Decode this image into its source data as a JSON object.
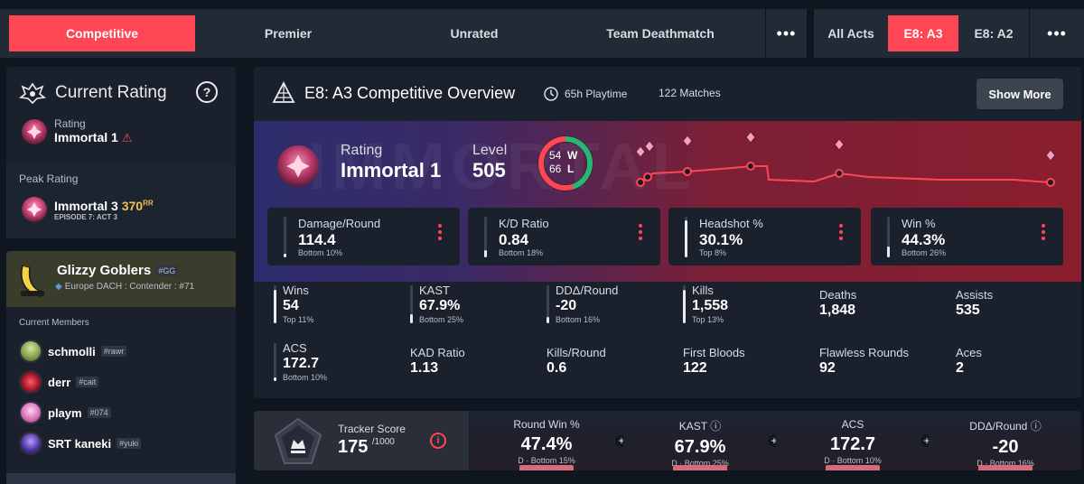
{
  "mode_tabs": [
    {
      "label": "Competitive",
      "active": true
    },
    {
      "label": "Premier"
    },
    {
      "label": "Unrated"
    },
    {
      "label": "Team Deathmatch"
    }
  ],
  "act_tabs": [
    {
      "label": "All Acts"
    },
    {
      "label": "E8: A3",
      "active": true
    },
    {
      "label": "E8: A2"
    }
  ],
  "more_glyph": "•••",
  "current_rating": {
    "title": "Current Rating",
    "help_glyph": "?",
    "label": "Rating",
    "rank": "Immortal 1",
    "warning_glyph": "⚠"
  },
  "peak_rating": {
    "title": "Peak Rating",
    "rank": "Immortal 3",
    "rr_value": "370",
    "rr_unit": "RR",
    "episode": "EPISODE 7: ACT 3"
  },
  "team": {
    "name": "Glizzy Goblers",
    "tag": "#GG",
    "league": "Europe DACH : Contender : #71",
    "members_title": "Current Members",
    "members": [
      {
        "name": "schmolli",
        "tag": "#rawr"
      },
      {
        "name": "derr",
        "tag": "#cait"
      },
      {
        "name": "playm",
        "tag": "#074"
      },
      {
        "name": "SRT kaneki",
        "tag": "#yuki"
      }
    ]
  },
  "overview": {
    "title": "E8: A3 Competitive Overview",
    "playtime": "65h Playtime",
    "matches": "122 Matches",
    "show_more": "Show More",
    "hero": {
      "watermark": "IMMORTAL",
      "rating_label": "Rating",
      "rating_value": "Immortal 1",
      "level_label": "Level",
      "level_value": "505",
      "wins": "54",
      "wins_letter": "W",
      "losses": "66",
      "losses_letter": "L"
    },
    "top_stats": [
      {
        "label": "Damage/Round",
        "value": "114.4",
        "sub": "Bottom 10%",
        "fill": 0.1
      },
      {
        "label": "K/D Ratio",
        "value": "0.84",
        "sub": "Bottom 18%",
        "fill": 0.18
      },
      {
        "label": "Headshot %",
        "value": "30.1%",
        "sub": "Top 8%",
        "fill": 0.92
      },
      {
        "label": "Win %",
        "value": "44.3%",
        "sub": "Bottom 26%",
        "fill": 0.26
      }
    ],
    "grid_stats": [
      {
        "label": "Wins",
        "value": "54",
        "sub": "Top 11%",
        "fill": 0.89
      },
      {
        "label": "KAST",
        "value": "67.9%",
        "sub": "Bottom 25%",
        "fill": 0.25
      },
      {
        "label": "DDΔ/Round",
        "value": "-20",
        "sub": "Bottom 16%",
        "fill": 0.16
      },
      {
        "label": "Kills",
        "value": "1,558",
        "sub": "Top 13%",
        "fill": 0.87
      },
      {
        "label": "Deaths",
        "value": "1,848"
      },
      {
        "label": "Assists",
        "value": "535"
      },
      {
        "label": "ACS",
        "value": "172.7",
        "sub": "Bottom 10%",
        "fill": 0.1
      },
      {
        "label": "KAD Ratio",
        "value": "1.13"
      },
      {
        "label": "Kills/Round",
        "value": "0.6"
      },
      {
        "label": "First Bloods",
        "value": "122"
      },
      {
        "label": "Flawless Rounds",
        "value": "92"
      },
      {
        "label": "Aces",
        "value": "2"
      }
    ]
  },
  "tracker": {
    "label": "Tracker Score",
    "score": "175",
    "max": "/1000",
    "info_glyph": "i",
    "metrics": [
      {
        "label": "Round Win %",
        "value": "47.4%",
        "sub": "D · Bottom 15%"
      },
      {
        "label": "KAST",
        "value": "67.9%",
        "sub": "D · Bottom 25%",
        "info": "ⓘ"
      },
      {
        "label": "ACS",
        "value": "172.7",
        "sub": "D · Bottom 10%"
      },
      {
        "label": "DDΔ/Round",
        "value": "-20",
        "sub": "D · Bottom 16%",
        "info": "ⓘ"
      }
    ],
    "plus_glyph": "+"
  },
  "colors": {
    "accent": "#ff4655",
    "win": "#2bb673",
    "loss": "#ff4655"
  }
}
